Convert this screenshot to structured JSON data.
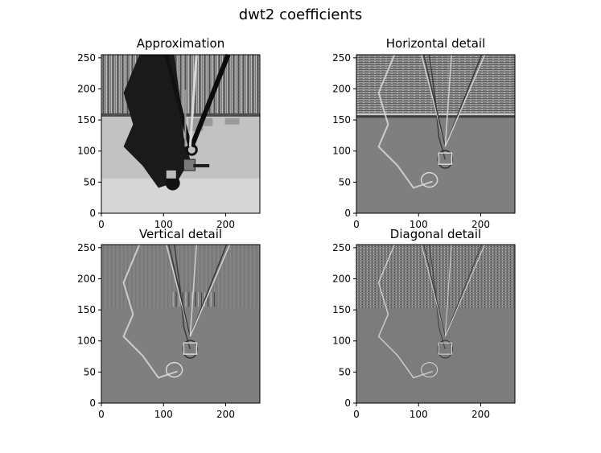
{
  "figure": {
    "title": "dwt2 coefficients"
  },
  "chart_data": [
    {
      "type": "heatmap",
      "title": "Approximation",
      "xlim": [
        0,
        255
      ],
      "ylim": [
        0,
        255
      ],
      "xticks": [
        0,
        100,
        200
      ],
      "yticks": [
        0,
        50,
        100,
        150,
        200,
        250
      ],
      "colormap": "gray",
      "origin": "lower",
      "grid": false
    },
    {
      "type": "heatmap",
      "title": "Horizontal detail",
      "xlim": [
        0,
        255
      ],
      "ylim": [
        0,
        255
      ],
      "xticks": [
        0,
        100,
        200
      ],
      "yticks": [
        0,
        50,
        100,
        150,
        200,
        250
      ],
      "colormap": "gray",
      "origin": "lower",
      "grid": false
    },
    {
      "type": "heatmap",
      "title": "Vertical detail",
      "xlim": [
        0,
        255
      ],
      "ylim": [
        0,
        255
      ],
      "xticks": [
        0,
        100,
        200
      ],
      "yticks": [
        0,
        50,
        100,
        150,
        200,
        250
      ],
      "colormap": "gray",
      "origin": "lower",
      "grid": false
    },
    {
      "type": "heatmap",
      "title": "Diagonal detail",
      "xlim": [
        0,
        255
      ],
      "ylim": [
        0,
        255
      ],
      "xticks": [
        0,
        100,
        200
      ],
      "yticks": [
        0,
        50,
        100,
        150,
        200,
        250
      ],
      "colormap": "gray",
      "origin": "lower",
      "grid": false
    }
  ]
}
